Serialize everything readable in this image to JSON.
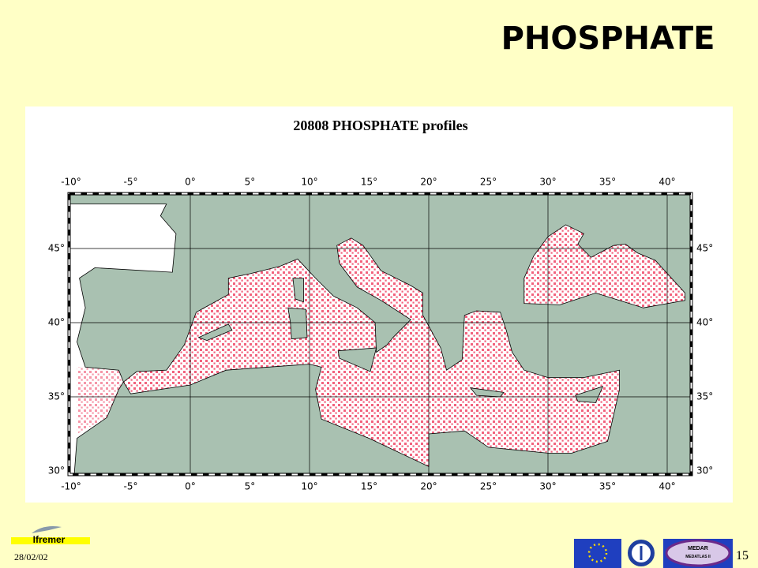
{
  "header": {
    "title": "PHOSPHATE"
  },
  "map": {
    "title": "20808 PHOSPHATE profiles",
    "lon_labels": [
      "-10°",
      "-5°",
      "0°",
      "5°",
      "10°",
      "15°",
      "20°",
      "25°",
      "30°",
      "35°",
      "40°"
    ],
    "lat_labels": [
      "45°",
      "40°",
      "35°",
      "30°"
    ]
  },
  "footer": {
    "logo_left": "Ifremer",
    "date": "28/02/02",
    "logo_medar": "MEDAR",
    "logo_medatlas": "MEDATLAS II",
    "page": "15"
  }
}
